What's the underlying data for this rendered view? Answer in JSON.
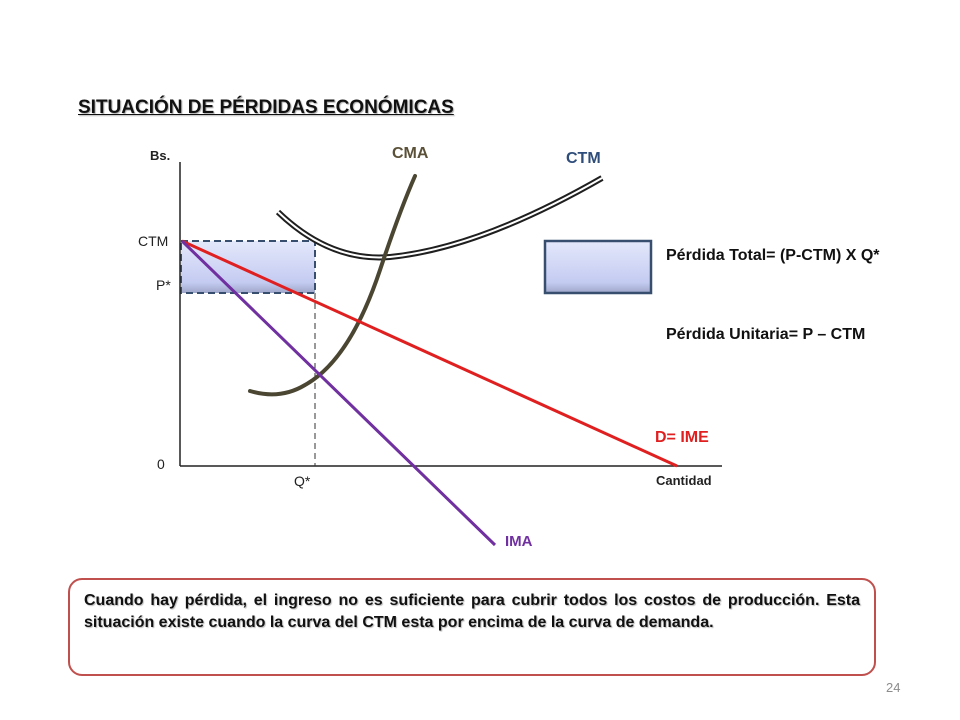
{
  "title": "SITUACIÓN DE  PÉRDIDAS ECONÓMICAS",
  "diagram": {
    "y_axis_label": "Bs.",
    "x_axis_label": "Cantidad",
    "origin_label": "0",
    "ctm_tick_label": "CTM",
    "price_tick_label": "P*",
    "quantity_tick_label": "Q*",
    "curves": {
      "cma": "CMA",
      "ctm": "CTM",
      "demand": "D= IME",
      "ima": "IMA"
    },
    "colors": {
      "cma": "#4a4632",
      "ctm": "#1f1f1f",
      "demand": "#e02020",
      "ima": "#7030a0",
      "cma_label": "#5a5138",
      "ctm_label": "#2f4d7a",
      "loss_box_fill": "#cdd3f5",
      "loss_box_border": "#374e6e"
    }
  },
  "formulas": {
    "total_loss": "Pérdida Total= (P-CTM) X Q*",
    "unit_loss": "Pérdida  Unitaria= P – CTM"
  },
  "note": "Cuando hay pérdida, el ingreso no es suficiente para cubrir todos los costos de producción. Esta situación existe cuando la curva del CTM esta por encima de la curva de demanda.",
  "page_number": "24"
}
